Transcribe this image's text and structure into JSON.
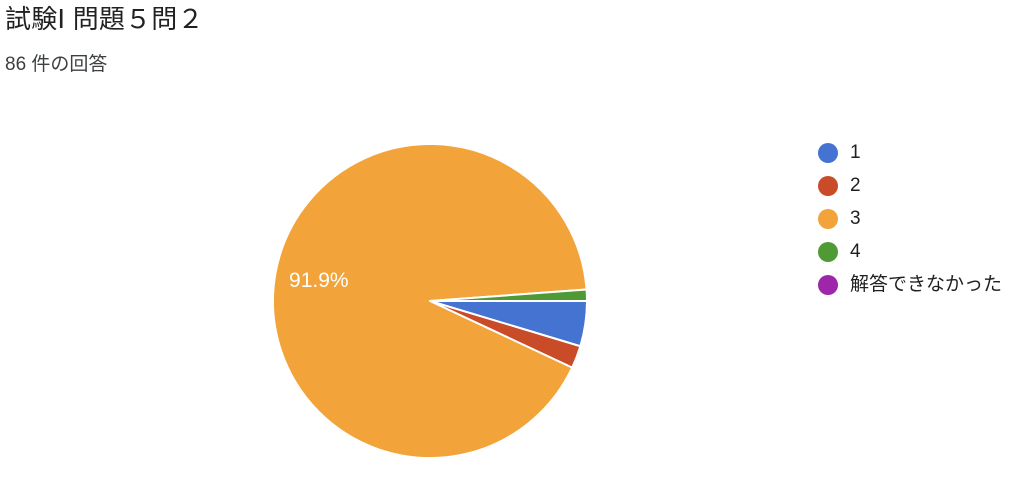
{
  "page": {
    "background": "#ffffff"
  },
  "header": {
    "title": "試験Ⅰ 問題５問２",
    "response_count": "86 件の回答"
  },
  "chart_data": {
    "type": "pie",
    "title": "試験Ⅰ 問題５問２",
    "subtitle": "86 件の回答",
    "total_responses": 86,
    "legend_position": "right",
    "start_angle_deg": 0,
    "direction": "clockwise",
    "shown_data_label": "91.9%",
    "slices": [
      {
        "label": "1",
        "count": 4,
        "percent": 4.7,
        "color": "#4573D1"
      },
      {
        "label": "2",
        "count": 2,
        "percent": 2.3,
        "color": "#C94B28"
      },
      {
        "label": "3",
        "count": 79,
        "percent": 91.9,
        "color": "#F2A43B",
        "data_label": "91.9%"
      },
      {
        "label": "4",
        "count": 1,
        "percent": 1.2,
        "color": "#4F9A35"
      },
      {
        "label": "解答できなかった",
        "count": 0,
        "percent": 0,
        "color": "#9D27A8"
      }
    ]
  }
}
